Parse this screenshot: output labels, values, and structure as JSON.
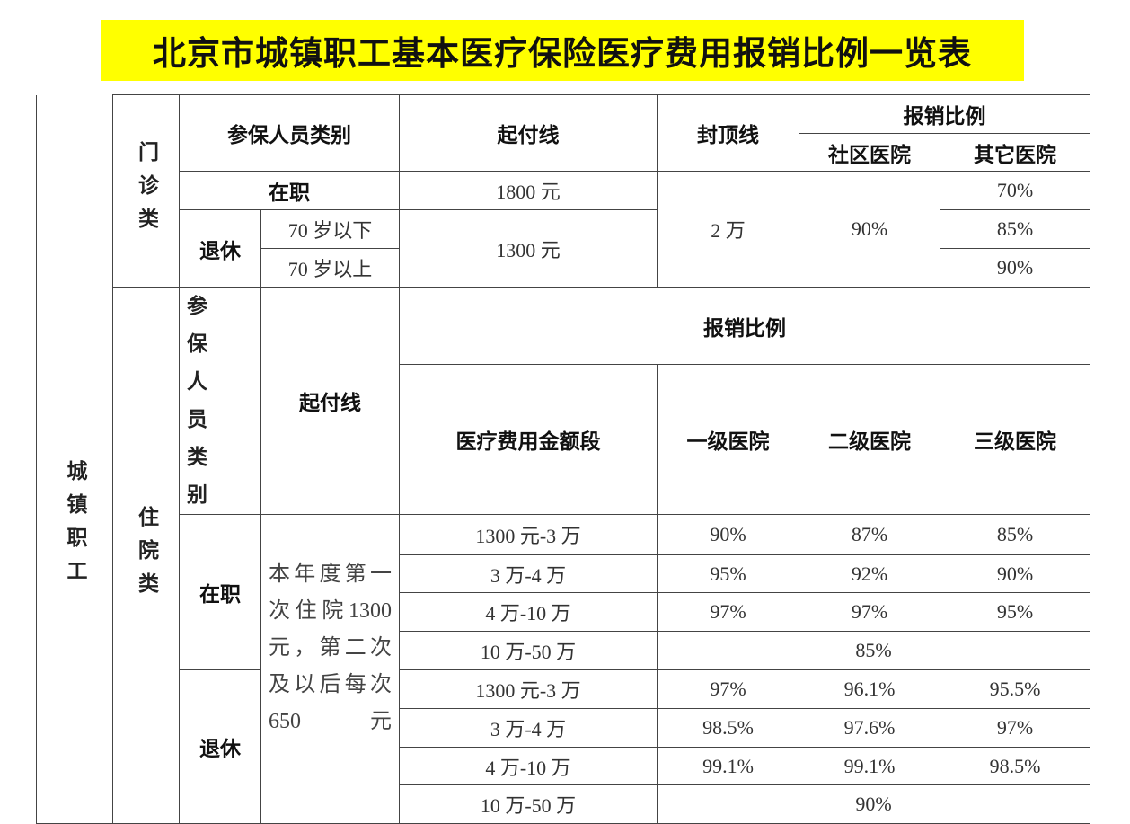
{
  "title": "北京市城镇职工基本医疗保险医疗费用报销比例一览表",
  "group": "城镇职工",
  "outpatient": {
    "category": "门诊类",
    "headers": {
      "member_type": "参保人员类别",
      "deductible": "起付线",
      "cap": "封顶线",
      "ratio": "报销比例",
      "community": "社区医院",
      "other": "其它医院"
    },
    "employed": {
      "label": "在职",
      "deductible": "1800 元",
      "other": "70%"
    },
    "retired": {
      "label": "退休",
      "under70": "70 岁以下",
      "over70": "70 岁以上",
      "deductible": "1300 元",
      "other_under70": "85%",
      "other_over70": "90%"
    },
    "cap": "2 万",
    "community": "90%"
  },
  "inpatient": {
    "category": "住院类",
    "headers": {
      "member_type": "参 保 人 员 类 别",
      "deductible": "起付线",
      "ratio": "报销比例",
      "range": "医疗费用金额段",
      "level1": "一级医院",
      "level2": "二级医院",
      "level3": "三级医院"
    },
    "deductible_note": "本年度第一次住院1300元，第二次及以后每次650元",
    "employed": {
      "label": "在职",
      "rows": [
        {
          "range": "1300 元-3 万",
          "l1": "90%",
          "l2": "87%",
          "l3": "85%"
        },
        {
          "range": "3 万-4 万",
          "l1": "95%",
          "l2": "92%",
          "l3": "90%"
        },
        {
          "range": "4 万-10 万",
          "l1": "97%",
          "l2": "97%",
          "l3": "95%"
        }
      ],
      "top_range": "10 万-50 万",
      "top_ratio": "85%"
    },
    "retired": {
      "label": "退休",
      "rows": [
        {
          "range": "1300 元-3 万",
          "l1": "97%",
          "l2": "96.1%",
          "l3": "95.5%"
        },
        {
          "range": "3 万-4 万",
          "l1": "98.5%",
          "l2": "97.6%",
          "l3": "97%"
        },
        {
          "range": "4 万-10 万",
          "l1": "99.1%",
          "l2": "99.1%",
          "l3": "98.5%"
        }
      ],
      "top_range": "10 万-50 万",
      "top_ratio": "90%"
    }
  }
}
